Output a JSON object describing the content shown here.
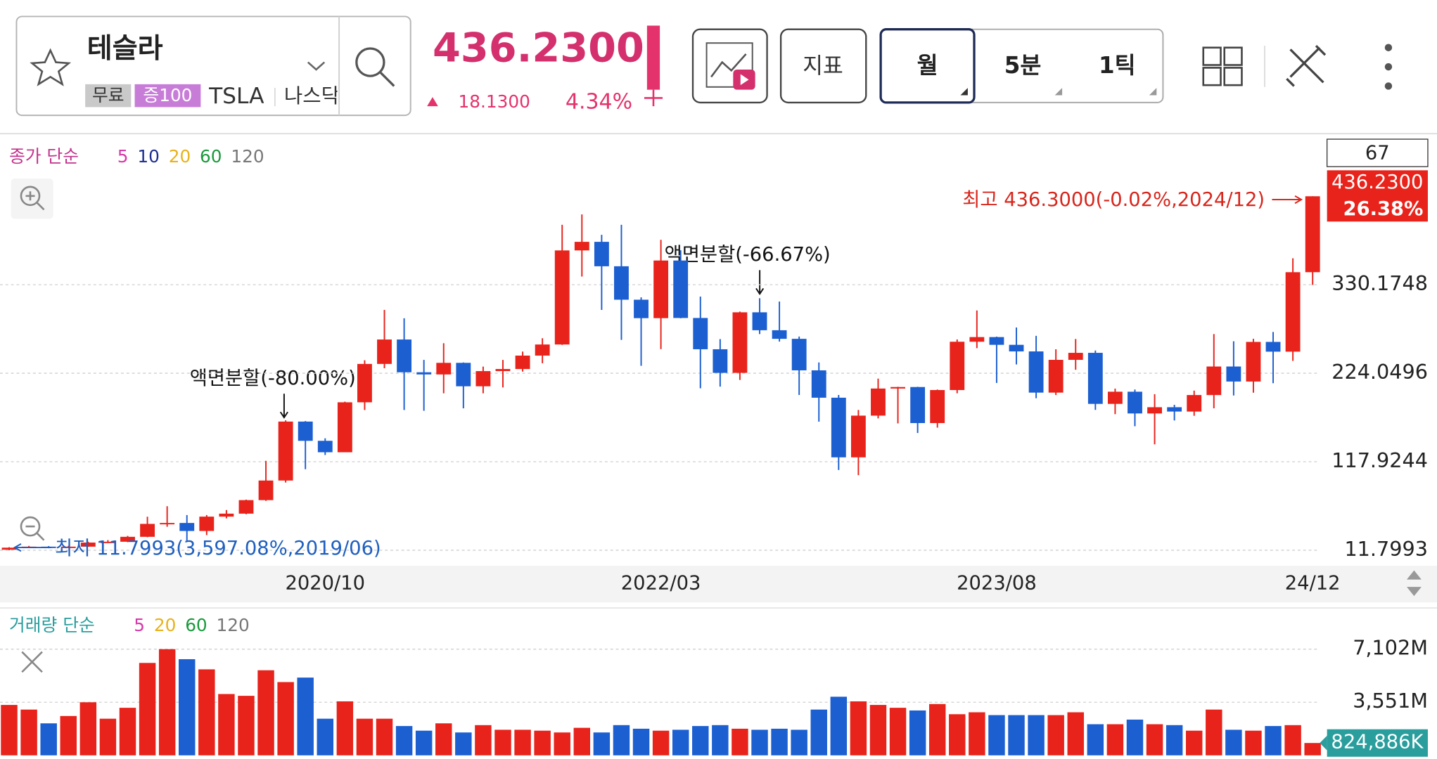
{
  "header": {
    "name": "테슬라",
    "badges": [
      "무료",
      "증100"
    ],
    "symbol": "TSLA",
    "exchange": "나스닥",
    "price": "436.2300",
    "change": "18.1300",
    "change_rate": "4.34%",
    "indicator_button": "지표",
    "periods": [
      "월",
      "5분",
      "1틱"
    ]
  },
  "chart_data": [
    {
      "type": "candlestick",
      "legend_title": "종가 단순",
      "ma": [
        {
          "name": "5",
          "color": "#d63aa8"
        },
        {
          "name": "10",
          "color": "#1e2f8f"
        },
        {
          "name": "20",
          "color": "#e8b21c"
        },
        {
          "name": "60",
          "color": "#1a9a3c"
        },
        {
          "name": "120",
          "color": "#777777"
        }
      ],
      "up_color": "#e8231b",
      "down_color": "#1c5fd1",
      "categories": [
        null,
        null,
        null,
        null,
        null,
        null,
        null,
        null,
        null,
        null,
        null,
        null,
        null,
        null,
        null,
        null,
        "2020/10",
        null,
        null,
        null,
        null,
        null,
        null,
        null,
        null,
        null,
        null,
        null,
        null,
        null,
        null,
        null,
        null,
        "2022/03",
        null,
        null,
        null,
        null,
        null,
        null,
        null,
        null,
        null,
        null,
        null,
        null,
        null,
        null,
        null,
        null,
        "2023/08",
        null,
        null,
        null,
        null,
        null,
        null,
        null,
        null,
        null,
        null,
        null,
        null,
        null,
        null,
        null,
        "24/12"
      ],
      "open": [
        12.4,
        14.9,
        16.1,
        15.0,
        16.1,
        21.0,
        22.0,
        27.9,
        43.4,
        44.5,
        34.9,
        52.1,
        55.7,
        71.9,
        95.4,
        166.1,
        143.0,
        129.3,
        189.2,
        235.2,
        264.5,
        225.2,
        222.6,
        236.5,
        208.4,
        226.6,
        229.1,
        245.2,
        258.5,
        371.3,
        381.6,
        352.3,
        312.2,
        290.1,
        359.2,
        290.3,
        252.8,
        224.5,
        297.1,
        275.6,
        265.3,
        227.5,
        194.7,
        123.2,
        173.2,
        205.7,
        207.5,
        164.3,
        203.9,
        261.8,
        267.4,
        258.1,
        250.2,
        200.8,
        240.1,
        248.5,
        187.3,
        201.9,
        175.8,
        183.3,
        178.1,
        197.9,
        232.1,
        214.1,
        261.6,
        249.9,
        345.2
      ],
      "high": [
        15.5,
        17.0,
        16.8,
        17.0,
        22.0,
        24.0,
        29.0,
        52.0,
        64.6,
        54.0,
        54.0,
        60.0,
        72.5,
        119.0,
        167.5,
        166.7,
        146.0,
        190.0,
        239.6,
        300.0,
        290.0,
        240.0,
        260.0,
        237.0,
        232.0,
        240.0,
        250.0,
        266.0,
        402.0,
        414.5,
        390.0,
        402.0,
        315.0,
        384.0,
        371.5,
        316.0,
        265.0,
        298.0,
        314.0,
        310.0,
        268.0,
        237.0,
        198.0,
        180.0,
        217.6,
        207.8,
        207.8,
        204.5,
        264.6,
        299.3,
        267.9,
        278.9,
        268.9,
        252.8,
        265.1,
        251.3,
        205.6,
        204.5,
        198.9,
        186.2,
        203.2,
        271.0,
        262.3,
        265.3,
        273.5,
        361.9,
        436.3
      ],
      "low": [
        11.7993,
        14.5,
        14.2,
        14.3,
        16.0,
        20.5,
        21.5,
        27.5,
        40.0,
        23.4,
        30.0,
        50.0,
        55.0,
        71.0,
        93.0,
        109.0,
        126.0,
        130.0,
        180.0,
        230.0,
        180.0,
        179.0,
        200.0,
        182.0,
        200.0,
        207.0,
        226.0,
        236.0,
        258.0,
        340.0,
        300.0,
        264.0,
        233.0,
        253.0,
        290.0,
        206.0,
        208.0,
        216.0,
        271.0,
        262.0,
        198.0,
        166.0,
        108.0,
        101.8,
        169.9,
        163.9,
        152.4,
        158.8,
        200.0,
        254.1,
        212.4,
        234.6,
        194.1,
        197.9,
        228.2,
        180.1,
        175.0,
        160.5,
        138.8,
        167.4,
        173.0,
        182.0,
        197.4,
        200.7,
        212.1,
        238.9,
        330.0
      ],
      "close": [
        14.9,
        16.1,
        15.0,
        16.1,
        21.0,
        22.0,
        27.9,
        43.4,
        44.5,
        34.9,
        52.1,
        55.7,
        71.9,
        95.4,
        166.1,
        143.0,
        129.3,
        189.2,
        235.2,
        264.5,
        225.2,
        222.6,
        236.5,
        208.4,
        226.6,
        229.1,
        245.2,
        258.5,
        371.3,
        381.6,
        352.3,
        312.2,
        290.1,
        359.2,
        290.3,
        252.8,
        224.5,
        297.1,
        275.6,
        265.3,
        227.5,
        194.7,
        123.2,
        173.2,
        205.7,
        207.5,
        164.3,
        203.9,
        261.8,
        267.4,
        258.1,
        250.2,
        200.8,
        240.1,
        248.5,
        187.3,
        201.9,
        175.8,
        183.3,
        178.1,
        197.9,
        232.1,
        214.1,
        261.6,
        249.9,
        345.2,
        436.23
      ],
      "ylim": [
        7.4,
        506.9
      ],
      "yticks": [
        11.7993,
        117.9244,
        224.0496,
        330.1748
      ],
      "grid": true,
      "bar_count": "67",
      "last_price_label": "436.2300",
      "last_change": "26.38%",
      "high_note": "최고 436.3000(-0.02%,2024/12)",
      "low_note": "최저 11.7993(3,597.08%,2019/06)",
      "split_notes": [
        "액면분할(-80.00%)",
        "액면분할(-66.67%)"
      ]
    },
    {
      "type": "bar",
      "legend_title": "거래량 단순",
      "ma": [
        {
          "name": "5",
          "color": "#d63aa8"
        },
        {
          "name": "20",
          "color": "#e8b21c"
        },
        {
          "name": "60",
          "color": "#1a9a3c"
        },
        {
          "name": "120",
          "color": "#777777"
        }
      ],
      "values": [
        3370,
        3060,
        2140,
        2630,
        3550,
        2450,
        3180,
        6180,
        7100,
        6430,
        5750,
        4100,
        3980,
        5690,
        4900,
        5200,
        2450,
        3610,
        2450,
        2450,
        1960,
        1650,
        2140,
        1530,
        2020,
        1710,
        1710,
        1650,
        1530,
        1840,
        1530,
        2020,
        1780,
        1650,
        1710,
        1960,
        2020,
        1780,
        1710,
        1780,
        1710,
        3060,
        3920,
        3610,
        3370,
        3180,
        3000,
        3430,
        2750,
        2880,
        2690,
        2690,
        2690,
        2690,
        2880,
        2080,
        2080,
        2390,
        2080,
        2020,
        1650,
        3060,
        1710,
        1650,
        1960,
        2020,
        824.886
      ],
      "value_labels": [
        null,
        null,
        null,
        null,
        null,
        null,
        null,
        null,
        null,
        null,
        null,
        null,
        null,
        null,
        null,
        null,
        null,
        null,
        null,
        null,
        null,
        null,
        null,
        null,
        null,
        null,
        null,
        null,
        null,
        null,
        null,
        null,
        null,
        null,
        null,
        null,
        null,
        null,
        null,
        null,
        null,
        null,
        null,
        null,
        null,
        null,
        null,
        null,
        null,
        null,
        null,
        null,
        null,
        null,
        null,
        null,
        null,
        null,
        null,
        null,
        null,
        null,
        null,
        null,
        null,
        null,
        "824,886K"
      ],
      "ylim": [
        0,
        7653
      ],
      "yticks": [
        {
          "value": 3551,
          "label": "3,551M"
        },
        {
          "value": 7102,
          "label": "7,102M"
        }
      ]
    }
  ]
}
